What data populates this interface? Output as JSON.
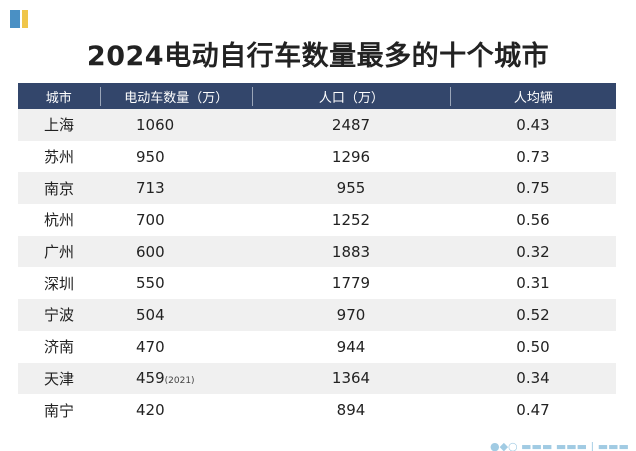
{
  "title": "2024电动自行车数量最多的十个城市",
  "columns": [
    "城市",
    "电动车数量（万）",
    "人口（万）",
    "人均辆"
  ],
  "rows": [
    {
      "city": "上海",
      "count": "1060",
      "note": "",
      "population": "2487",
      "per_capita": "0.43"
    },
    {
      "city": "苏州",
      "count": "950",
      "note": "",
      "population": "1296",
      "per_capita": "0.73"
    },
    {
      "city": "南京",
      "count": "713",
      "note": "",
      "population": "955",
      "per_capita": "0.75"
    },
    {
      "city": "杭州",
      "count": "700",
      "note": "",
      "population": "1252",
      "per_capita": "0.56"
    },
    {
      "city": "广州",
      "count": "600",
      "note": "",
      "population": "1883",
      "per_capita": "0.32"
    },
    {
      "city": "深圳",
      "count": "550",
      "note": "",
      "population": "1779",
      "per_capita": "0.31"
    },
    {
      "city": "宁波",
      "count": "504",
      "note": "",
      "population": "970",
      "per_capita": "0.52"
    },
    {
      "city": "济南",
      "count": "470",
      "note": "",
      "population": "944",
      "per_capita": "0.50"
    },
    {
      "city": "天津",
      "count": "459",
      "note": "(2021)",
      "population": "1364",
      "per_capita": "0.34"
    },
    {
      "city": "南宁",
      "count": "420",
      "note": "",
      "population": "894",
      "per_capita": "0.47"
    }
  ],
  "colors": {
    "header_bg": "#33466b",
    "stripe": "#f0f0f0",
    "logo_blue": "#4a90c4",
    "logo_yellow": "#f0c64a"
  }
}
